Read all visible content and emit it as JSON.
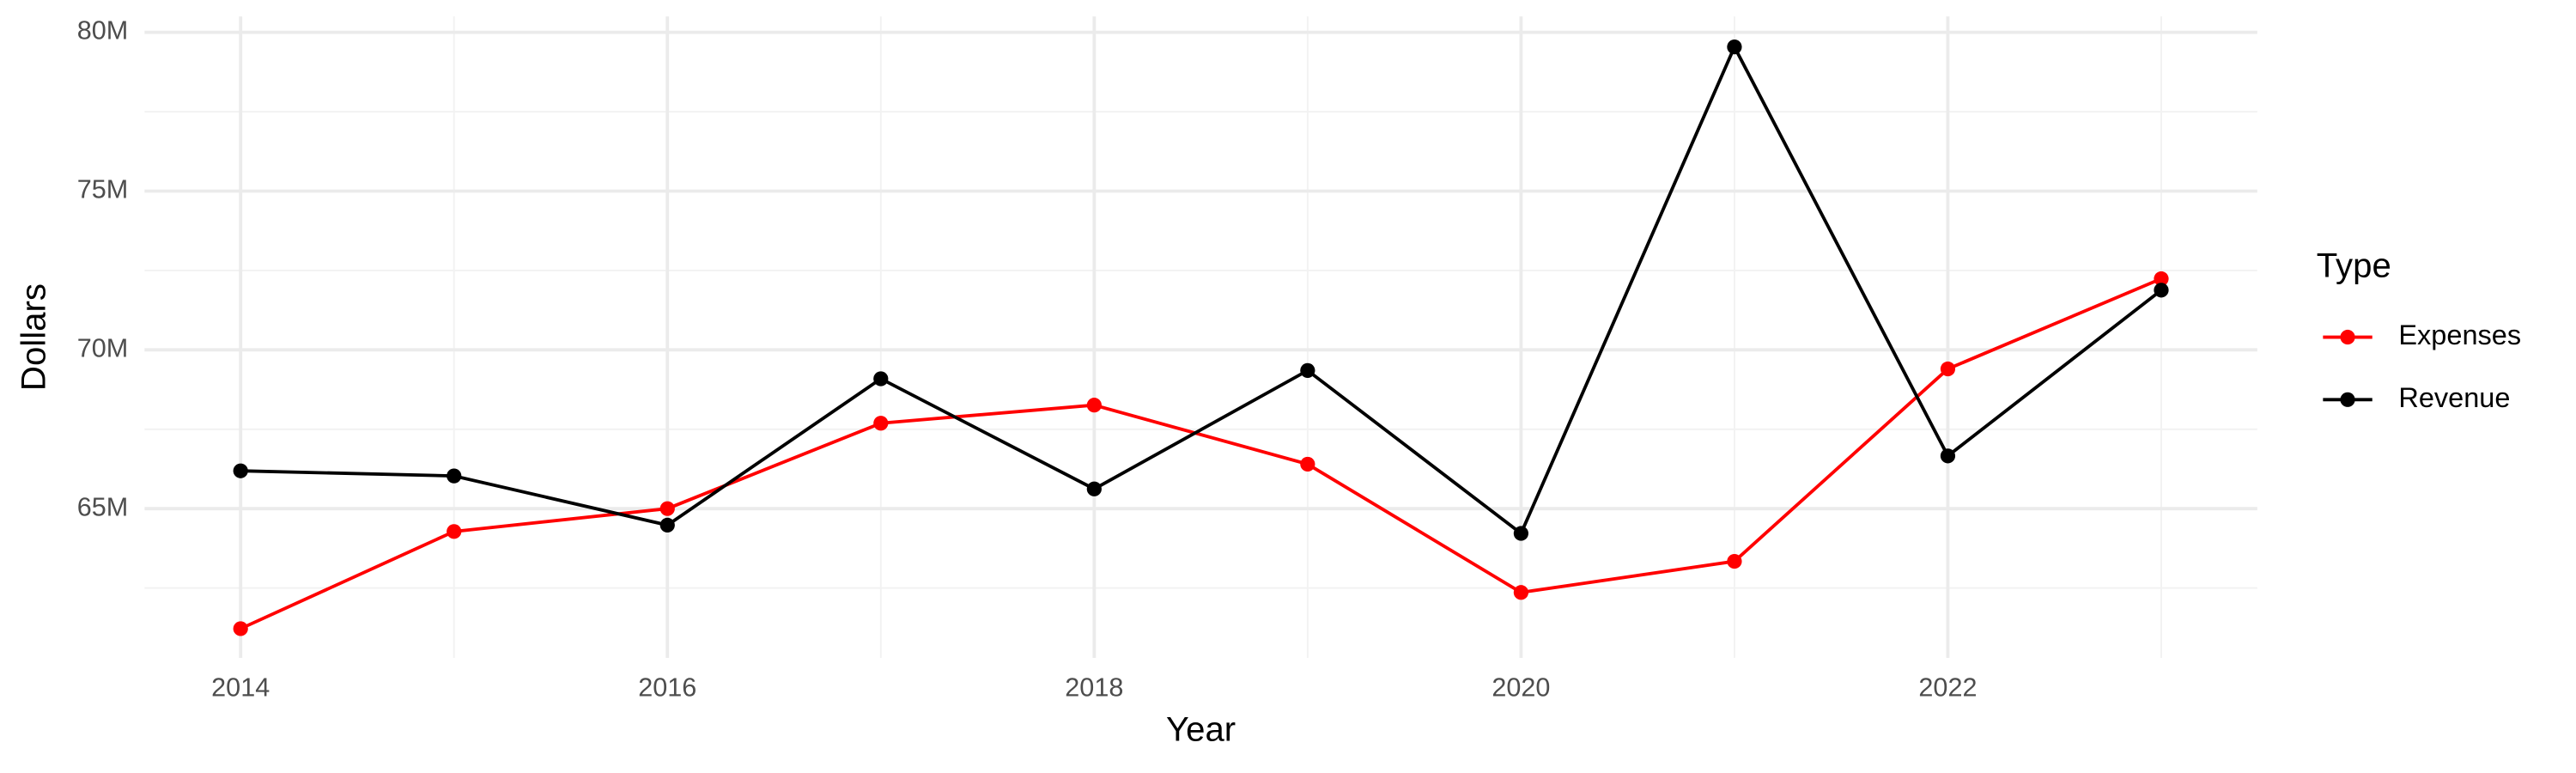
{
  "chart_data": {
    "type": "line",
    "x_label": "Year",
    "y_label": "Dollars",
    "legend_title": "Type",
    "legend_position": "right",
    "grid": true,
    "x": [
      2014,
      2015,
      2016,
      2017,
      2018,
      2019,
      2020,
      2021,
      2022,
      2023
    ],
    "series": [
      {
        "name": "Expenses",
        "color": "#ff0000",
        "values": [
          61.22,
          64.28,
          65.0,
          67.69,
          68.26,
          66.4,
          62.36,
          63.34,
          69.4,
          72.24
        ]
      },
      {
        "name": "Revenue",
        "color": "#000000",
        "values": [
          66.19,
          66.03,
          64.48,
          69.09,
          65.62,
          69.35,
          64.22,
          79.54,
          66.66,
          71.88
        ]
      }
    ],
    "xlim": [
      2013.55,
      2023.45
    ],
    "xticks": [
      2014,
      2016,
      2018,
      2020,
      2022
    ],
    "ylim": [
      60.3,
      80.5
    ],
    "yticks": [
      {
        "value": 65,
        "label": "65M"
      },
      {
        "value": 70,
        "label": "70M"
      },
      {
        "value": 75,
        "label": "75M"
      },
      {
        "value": 80,
        "label": "80M"
      }
    ]
  }
}
